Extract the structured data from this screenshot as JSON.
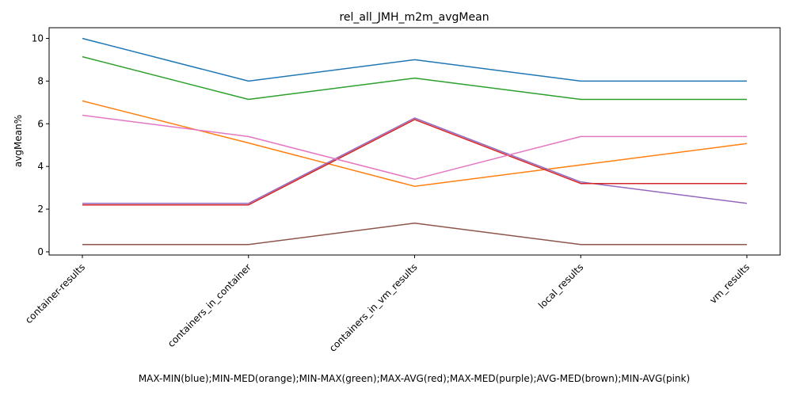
{
  "chart_data": {
    "type": "line",
    "title": "rel_all_JMH_m2m_avgMean",
    "xlabel": "MAX-MIN(blue);MIN-MED(orange);MIN-MAX(green);MAX-AVG(red);MAX-MED(purple);AVG-MED(brown);MIN-AVG(pink)",
    "ylabel": "avgMean%",
    "categories": [
      "container-results",
      "containers_in_container",
      "containers_in_vm_results",
      "local_results",
      "vm_results"
    ],
    "yticks": [
      0,
      2,
      4,
      6,
      8,
      10
    ],
    "ylim": [
      -0.15,
      10.5
    ],
    "grid": false,
    "legend": "none",
    "series": [
      {
        "color": "#1f77b4",
        "values": [
          10.0,
          8.0,
          9.0,
          8.0,
          8.0
        ]
      },
      {
        "color": "#ff7f0e",
        "values": [
          7.07,
          5.1,
          3.07,
          4.07,
          5.07
        ]
      },
      {
        "color": "#2ca02c",
        "values": [
          9.14,
          7.14,
          8.14,
          7.14,
          7.14
        ]
      },
      {
        "color": "#9467bd",
        "values": [
          2.27,
          2.27,
          6.27,
          3.27,
          2.27
        ]
      },
      {
        "color": "#d62728",
        "values": [
          2.2,
          2.2,
          6.2,
          3.2,
          3.2
        ]
      },
      {
        "color": "#8c564b",
        "values": [
          0.34,
          0.34,
          1.34,
          0.34,
          0.34
        ]
      },
      {
        "color": "#e377c2",
        "values": [
          6.4,
          5.4,
          3.4,
          5.4,
          5.4
        ]
      }
    ]
  }
}
